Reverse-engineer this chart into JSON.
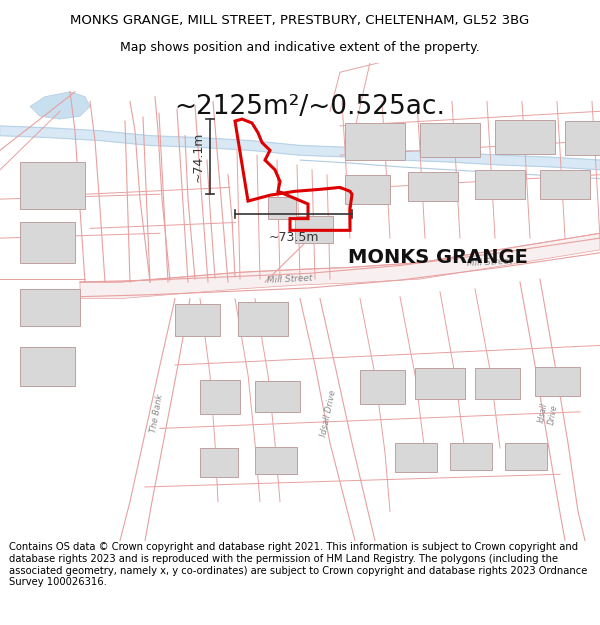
{
  "title_line1": "MONKS GRANGE, MILL STREET, PRESTBURY, CHELTENHAM, GL52 3BG",
  "title_line2": "Map shows position and indicative extent of the property.",
  "area_label": "~2125m²/~0.525ac.",
  "property_label": "MONKS GRANGE",
  "dim_vertical": "~74.1m",
  "dim_horizontal": "~73.5m",
  "footer_text": "Contains OS data © Crown copyright and database right 2021. This information is subject to Crown copyright and database rights 2023 and is reproduced with the permission of HM Land Registry. The polygons (including the associated geometry, namely x, y co-ordinates) are subject to Crown copyright and database rights 2023 Ordnance Survey 100026316.",
  "bg_color": "#ffffff",
  "road_line_color": "#e8a0a0",
  "road_fill_color": "#f5d0d0",
  "property_color": "#dd0000",
  "building_color": "#d8d8d8",
  "building_edge": "#c0a0a0",
  "water_color": "#c8dff0",
  "water_line": "#b0cce0",
  "dim_color": "#333333",
  "title_fontsize": 9.5,
  "subtitle_fontsize": 9.0,
  "area_fontsize": 19,
  "label_fontsize": 14,
  "street_fontsize": 7.0,
  "footer_fontsize": 7.2
}
